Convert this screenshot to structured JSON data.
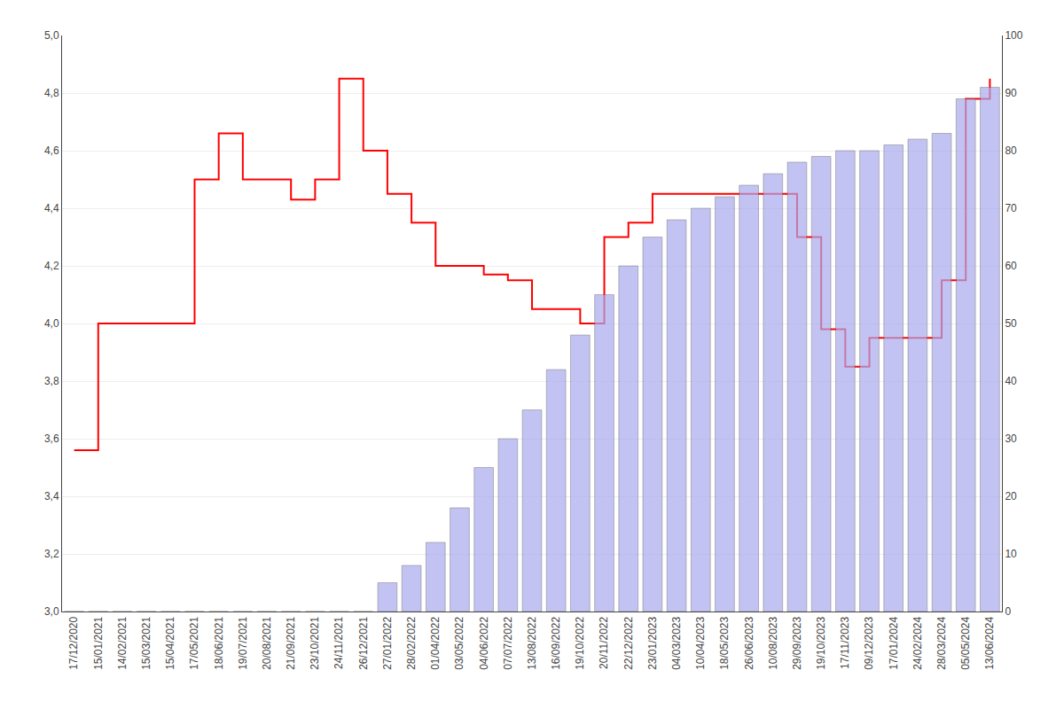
{
  "chart_data": {
    "type": "bar",
    "categories": [
      "17/12/2020",
      "15/01/2021",
      "14/02/2021",
      "15/03/2021",
      "15/04/2021",
      "17/05/2021",
      "18/06/2021",
      "19/07/2021",
      "20/08/2021",
      "21/09/2021",
      "23/10/2021",
      "24/11/2021",
      "26/12/2021",
      "27/01/2022",
      "28/02/2022",
      "01/04/2022",
      "03/05/2022",
      "04/06/2022",
      "07/07/2022",
      "13/08/2022",
      "16/09/2022",
      "19/10/2022",
      "20/11/2022",
      "22/12/2022",
      "23/01/2023",
      "04/03/2023",
      "10/04/2023",
      "18/05/2023",
      "26/06/2023",
      "10/08/2023",
      "29/09/2023",
      "19/10/2023",
      "17/11/2023",
      "09/12/2023",
      "17/01/2024",
      "24/02/2024",
      "28/03/2024",
      "05/05/2024",
      "13/06/2024"
    ],
    "series": [
      {
        "type": "bar",
        "axis": "y2",
        "color": "#aaaaee",
        "values": [
          0,
          0,
          0,
          0,
          0,
          0,
          0,
          0,
          0,
          0,
          0,
          0,
          0,
          5,
          8,
          12,
          18,
          25,
          30,
          35,
          42,
          48,
          55,
          60,
          65,
          68,
          70,
          72,
          74,
          76,
          78,
          79,
          80,
          80,
          81,
          82,
          83,
          89,
          91
        ]
      },
      {
        "type": "line",
        "line_style": "step",
        "color": "#ff0000",
        "values": [
          3.56,
          4.0,
          4.0,
          4.0,
          4.0,
          4.5,
          4.66,
          4.5,
          4.5,
          4.43,
          4.5,
          4.85,
          4.6,
          4.45,
          4.35,
          4.2,
          4.2,
          4.17,
          4.15,
          4.05,
          4.05,
          4.0,
          4.3,
          4.35,
          4.45,
          4.45,
          4.45,
          4.45,
          4.45,
          4.45,
          4.3,
          3.98,
          3.85,
          3.95,
          3.95,
          3.95,
          4.15,
          4.78,
          4.85
        ]
      }
    ],
    "ylim": [
      3.0,
      5.0
    ],
    "yticks": [
      {
        "value": 3.0,
        "label": "3,0"
      },
      {
        "value": 3.2,
        "label": "3,2"
      },
      {
        "value": 3.4,
        "label": "3,4"
      },
      {
        "value": 3.6,
        "label": "3,6"
      },
      {
        "value": 3.8,
        "label": "3,8"
      },
      {
        "value": 4.0,
        "label": "4,0"
      },
      {
        "value": 4.2,
        "label": "4,2"
      },
      {
        "value": 4.4,
        "label": "4,4"
      },
      {
        "value": 4.6,
        "label": "4,6"
      },
      {
        "value": 4.8,
        "label": "4,8"
      },
      {
        "value": 5.0,
        "label": "5,0"
      }
    ],
    "y2lim": [
      0,
      100
    ],
    "y2ticks": [
      0,
      10,
      20,
      30,
      40,
      50,
      60,
      70,
      80,
      90,
      100
    ],
    "grid": true
  }
}
